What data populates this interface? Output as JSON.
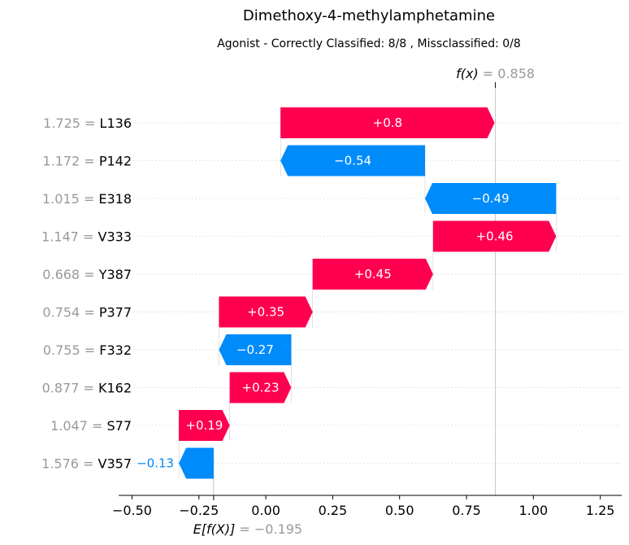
{
  "chart_data": {
    "type": "waterfall",
    "title": "Dimethoxy-4-methylamphetamine",
    "subtitle": "Agonist - Correctly Classified: 8/8 , Missclassified: 0/8",
    "base_value": -0.195,
    "base_label": "E[f(X)]",
    "base_value_label": "= −0.195",
    "output_value": 0.858,
    "output_label": "f(x)",
    "output_value_label": "= 0.858",
    "xlim": [
      -0.55,
      1.33
    ],
    "xticks": [
      -0.5,
      -0.25,
      0.0,
      0.25,
      0.5,
      0.75,
      1.0,
      1.25
    ],
    "xtick_labels": [
      "−0.50",
      "−0.25",
      "0.00",
      "0.25",
      "0.50",
      "0.75",
      "1.00",
      "1.25"
    ],
    "grid": "horizontal dotted",
    "features": [
      {
        "value": "1.725",
        "name": "L136",
        "contribution": 0.8,
        "label": "+0.8"
      },
      {
        "value": "1.172",
        "name": "P142",
        "contribution": -0.54,
        "label": "−0.54"
      },
      {
        "value": "1.015",
        "name": "E318",
        "contribution": -0.49,
        "label": "−0.49"
      },
      {
        "value": "1.147",
        "name": "V333",
        "contribution": 0.46,
        "label": "+0.46"
      },
      {
        "value": "0.668",
        "name": "Y387",
        "contribution": 0.45,
        "label": "+0.45"
      },
      {
        "value": "0.754",
        "name": "P377",
        "contribution": 0.35,
        "label": "+0.35"
      },
      {
        "value": "0.755",
        "name": "F332",
        "contribution": -0.27,
        "label": "−0.27"
      },
      {
        "value": "0.877",
        "name": "K162",
        "contribution": 0.23,
        "label": "+0.23"
      },
      {
        "value": "1.047",
        "name": "S77",
        "contribution": 0.19,
        "label": "+0.19"
      },
      {
        "value": "1.576",
        "name": "V357",
        "contribution": -0.13,
        "label": "−0.13"
      }
    ],
    "colors": {
      "positive": "#ff0051",
      "negative": "#008bfb",
      "grid": "#dddddd",
      "muted": "#999999"
    }
  }
}
